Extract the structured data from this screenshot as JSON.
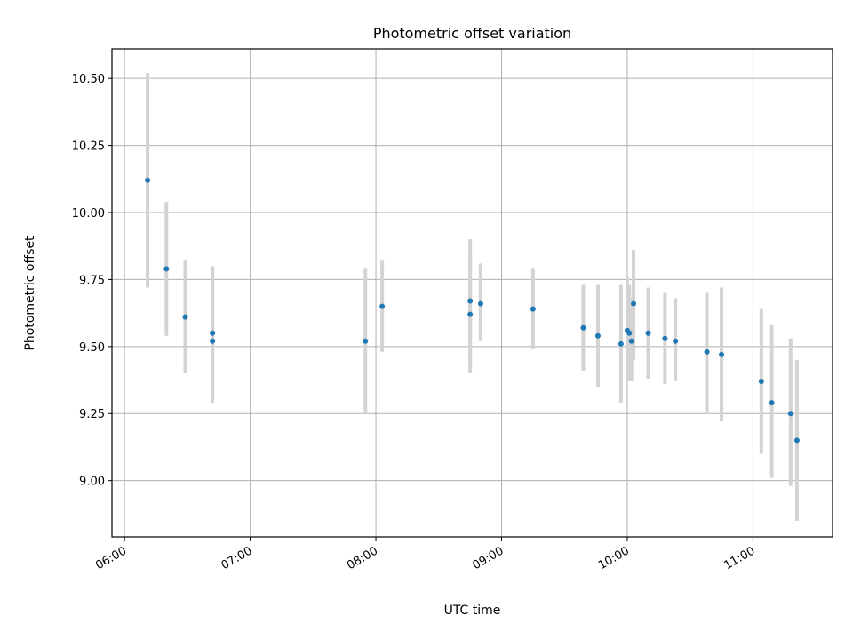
{
  "chart_data": {
    "type": "scatter",
    "title": "Photometric offset variation",
    "xlabel": "UTC time",
    "ylabel": "Photometric offset",
    "x_tick_labels": [
      "06:00",
      "07:00",
      "08:00",
      "09:00",
      "10:00",
      "11:00"
    ],
    "y_tick_labels": [
      "9.00",
      "9.25",
      "9.50",
      "9.75",
      "10.00",
      "10.25",
      "10.50"
    ],
    "xlim": [
      "05:54",
      "11:38"
    ],
    "ylim": [
      8.79,
      10.61
    ],
    "grid": true,
    "error_bar_color": "#d3d3d3",
    "point_color": "#1f77b4",
    "points": [
      {
        "x": "06:11",
        "y": 10.12,
        "ylow": 9.72,
        "yhigh": 10.52
      },
      {
        "x": "06:20",
        "y": 9.79,
        "ylow": 9.54,
        "yhigh": 10.04
      },
      {
        "x": "06:29",
        "y": 9.61,
        "ylow": 9.4,
        "yhigh": 9.82
      },
      {
        "x": "06:42",
        "y": 9.55,
        "ylow": 9.31,
        "yhigh": 9.8
      },
      {
        "x": "06:42",
        "y": 9.52,
        "ylow": 9.29,
        "yhigh": 9.75
      },
      {
        "x": "07:55",
        "y": 9.52,
        "ylow": 9.25,
        "yhigh": 9.79
      },
      {
        "x": "08:03",
        "y": 9.65,
        "ylow": 9.48,
        "yhigh": 9.82
      },
      {
        "x": "08:45",
        "y": 9.67,
        "ylow": 9.44,
        "yhigh": 9.9
      },
      {
        "x": "08:45",
        "y": 9.62,
        "ylow": 9.4,
        "yhigh": 9.84
      },
      {
        "x": "08:50",
        "y": 9.66,
        "ylow": 9.52,
        "yhigh": 9.81
      },
      {
        "x": "09:15",
        "y": 9.64,
        "ylow": 9.49,
        "yhigh": 9.79
      },
      {
        "x": "09:39",
        "y": 9.57,
        "ylow": 9.41,
        "yhigh": 9.73
      },
      {
        "x": "09:46",
        "y": 9.54,
        "ylow": 9.35,
        "yhigh": 9.73
      },
      {
        "x": "09:57",
        "y": 9.51,
        "ylow": 9.29,
        "yhigh": 9.73
      },
      {
        "x": "10:00",
        "y": 9.56,
        "ylow": 9.37,
        "yhigh": 9.76
      },
      {
        "x": "10:01",
        "y": 9.55,
        "ylow": 9.37,
        "yhigh": 9.73
      },
      {
        "x": "10:02",
        "y": 9.52,
        "ylow": 9.37,
        "yhigh": 9.68
      },
      {
        "x": "10:03",
        "y": 9.66,
        "ylow": 9.45,
        "yhigh": 9.86
      },
      {
        "x": "10:10",
        "y": 9.55,
        "ylow": 9.38,
        "yhigh": 9.72
      },
      {
        "x": "10:18",
        "y": 9.53,
        "ylow": 9.36,
        "yhigh": 9.7
      },
      {
        "x": "10:23",
        "y": 9.52,
        "ylow": 9.37,
        "yhigh": 9.68
      },
      {
        "x": "10:38",
        "y": 9.48,
        "ylow": 9.25,
        "yhigh": 9.7
      },
      {
        "x": "10:45",
        "y": 9.47,
        "ylow": 9.22,
        "yhigh": 9.72
      },
      {
        "x": "11:04",
        "y": 9.37,
        "ylow": 9.1,
        "yhigh": 9.64
      },
      {
        "x": "11:09",
        "y": 9.29,
        "ylow": 9.01,
        "yhigh": 9.58
      },
      {
        "x": "11:18",
        "y": 9.25,
        "ylow": 8.98,
        "yhigh": 9.53
      },
      {
        "x": "11:21",
        "y": 9.15,
        "ylow": 8.85,
        "yhigh": 9.45
      }
    ]
  }
}
